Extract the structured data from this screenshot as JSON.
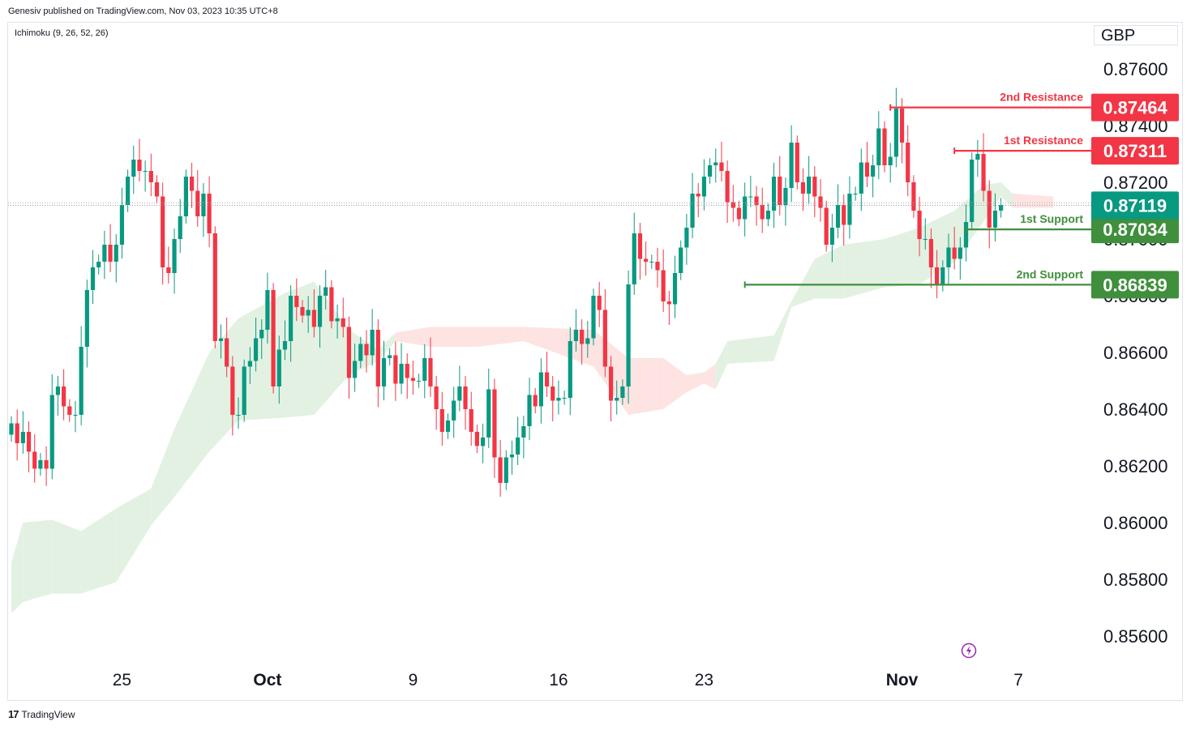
{
  "header": {
    "published": "Genesiv published on TradingView.com, Nov 03, 2023 10:35 UTC+8",
    "indicator": "Ichimoku (9, 26, 52, 26)",
    "currency": "GBP"
  },
  "footer": {
    "brand": "TradingView"
  },
  "colors": {
    "up": "#089981",
    "down": "#f23645",
    "cloud_bull": "#e3f1e3",
    "cloud_bear": "#fde4e2",
    "resistance": "#f23645",
    "support": "#3f8f3c",
    "last_price": "#089981"
  },
  "chart_data": {
    "type": "candlestick",
    "y_ticks": [
      "0.85600",
      "0.85800",
      "0.86000",
      "0.86200",
      "0.86400",
      "0.86600",
      "0.86800",
      "0.87000",
      "0.87200",
      "0.87400",
      "0.87600"
    ],
    "x_ticks": [
      {
        "label": "25",
        "index": 19
      },
      {
        "label": "Oct",
        "index": 44
      },
      {
        "label": "9",
        "index": 69
      },
      {
        "label": "16",
        "index": 94
      },
      {
        "label": "23",
        "index": 119
      },
      {
        "label": "Nov",
        "index": 153
      },
      {
        "label": "7",
        "index": 173
      }
    ],
    "levels": [
      {
        "label": "2nd Resistance",
        "value": "0.87464",
        "kind": "resistance",
        "from_index": 151
      },
      {
        "label": "1st Resistance",
        "value": "0.87311",
        "kind": "resistance",
        "from_index": 162
      },
      {
        "label": "1st Support",
        "value": "0.87034",
        "kind": "support",
        "from_index": 164
      },
      {
        "label": "2nd Support",
        "value": "0.86839",
        "kind": "support",
        "from_index": 126
      }
    ],
    "last_price": {
      "value": "0.87119"
    },
    "closes": [
      0.8635,
      0.8628,
      0.8632,
      0.8625,
      0.8619,
      0.8622,
      0.8619,
      0.8645,
      0.8648,
      0.8641,
      0.8638,
      0.8638,
      0.8662,
      0.8682,
      0.869,
      0.8692,
      0.8698,
      0.8692,
      0.8698,
      0.8712,
      0.8722,
      0.8728,
      0.8724,
      0.8724,
      0.872,
      0.8715,
      0.869,
      0.8688,
      0.87,
      0.8708,
      0.8722,
      0.8717,
      0.8708,
      0.8716,
      0.8702,
      0.8664,
      0.8665,
      0.8655,
      0.8638,
      0.8638,
      0.8655,
      0.8657,
      0.8665,
      0.8668,
      0.8682,
      0.8648,
      0.8661,
      0.8664,
      0.868,
      0.8676,
      0.8673,
      0.8675,
      0.8669,
      0.868,
      0.8683,
      0.8671,
      0.8672,
      0.8669,
      0.8651,
      0.8657,
      0.8663,
      0.8659,
      0.8668,
      0.8648,
      0.8658,
      0.8659,
      0.8649,
      0.8656,
      0.8651,
      0.865,
      0.865,
      0.8658,
      0.8648,
      0.864,
      0.8632,
      0.8636,
      0.8643,
      0.8648,
      0.864,
      0.8632,
      0.8627,
      0.863,
      0.8647,
      0.8623,
      0.8614,
      0.8623,
      0.8624,
      0.863,
      0.8634,
      0.8645,
      0.8641,
      0.8653,
      0.8648,
      0.8643,
      0.8644,
      0.8644,
      0.8664,
      0.8668,
      0.8663,
      0.8665,
      0.868,
      0.8675,
      0.8655,
      0.8643,
      0.8644,
      0.8648,
      0.8684,
      0.8702,
      0.8693,
      0.8692,
      0.8692,
      0.8689,
      0.8678,
      0.8677,
      0.8688,
      0.8697,
      0.8704,
      0.8716,
      0.8715,
      0.8722,
      0.8726,
      0.8727,
      0.8724,
      0.8713,
      0.8711,
      0.8707,
      0.8715,
      0.8715,
      0.8712,
      0.8707,
      0.871,
      0.8722,
      0.8712,
      0.8718,
      0.8734,
      0.872,
      0.8716,
      0.8722,
      0.8715,
      0.8711,
      0.8698,
      0.8704,
      0.8712,
      0.8705,
      0.8716,
      0.8716,
      0.8727,
      0.8722,
      0.8726,
      0.8739,
      0.8726,
      0.8729,
      0.8746,
      0.8734,
      0.872,
      0.871,
      0.87,
      0.87,
      0.869,
      0.8684,
      0.869,
      0.8697,
      0.8693,
      0.8697,
      0.8706,
      0.8728,
      0.873,
      0.8717,
      0.8704,
      0.871,
      0.8712
    ],
    "cloud": [
      {
        "i": 0,
        "lo": 0.8568,
        "hi": 0.8586,
        "bull": true
      },
      {
        "i": 2,
        "lo": 0.8572,
        "hi": 0.86,
        "bull": true
      },
      {
        "i": 7,
        "lo": 0.8575,
        "hi": 0.8601,
        "bull": true
      },
      {
        "i": 12,
        "lo": 0.8575,
        "hi": 0.8597,
        "bull": true
      },
      {
        "i": 18,
        "lo": 0.8579,
        "hi": 0.8605,
        "bull": true
      },
      {
        "i": 24,
        "lo": 0.8599,
        "hi": 0.8612,
        "bull": true
      },
      {
        "i": 28,
        "lo": 0.8609,
        "hi": 0.8633,
        "bull": true
      },
      {
        "i": 34,
        "lo": 0.8625,
        "hi": 0.866,
        "bull": true
      },
      {
        "i": 39,
        "lo": 0.8636,
        "hi": 0.8672,
        "bull": true
      },
      {
        "i": 47,
        "lo": 0.8637,
        "hi": 0.8681,
        "bull": true
      },
      {
        "i": 52,
        "lo": 0.8638,
        "hi": 0.8685,
        "bull": true
      },
      {
        "i": 58,
        "lo": 0.8652,
        "hi": 0.8668,
        "bull": true
      },
      {
        "i": 63,
        "lo": 0.8657,
        "hi": 0.8661,
        "bull": true
      },
      {
        "i": 66,
        "lo": 0.8664,
        "hi": 0.8667,
        "bull": false
      },
      {
        "i": 72,
        "lo": 0.8662,
        "hi": 0.8669,
        "bull": false
      },
      {
        "i": 80,
        "lo": 0.8662,
        "hi": 0.8669,
        "bull": false
      },
      {
        "i": 88,
        "lo": 0.8664,
        "hi": 0.8669,
        "bull": false
      },
      {
        "i": 100,
        "lo": 0.8655,
        "hi": 0.8668,
        "bull": false
      },
      {
        "i": 106,
        "lo": 0.8638,
        "hi": 0.8658,
        "bull": false
      },
      {
        "i": 112,
        "lo": 0.864,
        "hi": 0.8658,
        "bull": false
      },
      {
        "i": 116,
        "lo": 0.8646,
        "hi": 0.8652,
        "bull": false
      },
      {
        "i": 119,
        "lo": 0.8649,
        "hi": 0.8653,
        "bull": false
      },
      {
        "i": 121,
        "lo": 0.8647,
        "hi": 0.8656,
        "bull": true
      },
      {
        "i": 123,
        "lo": 0.8656,
        "hi": 0.8664,
        "bull": true
      },
      {
        "i": 131,
        "lo": 0.8657,
        "hi": 0.8666,
        "bull": true
      },
      {
        "i": 134,
        "lo": 0.8676,
        "hi": 0.8678,
        "bull": true
      },
      {
        "i": 138,
        "lo": 0.8679,
        "hi": 0.8693,
        "bull": true
      },
      {
        "i": 143,
        "lo": 0.8679,
        "hi": 0.8698,
        "bull": true
      },
      {
        "i": 150,
        "lo": 0.8683,
        "hi": 0.87,
        "bull": true
      },
      {
        "i": 156,
        "lo": 0.8684,
        "hi": 0.8704,
        "bull": true
      },
      {
        "i": 162,
        "lo": 0.8692,
        "hi": 0.871,
        "bull": true
      },
      {
        "i": 167,
        "lo": 0.8706,
        "hi": 0.8719,
        "bull": true
      },
      {
        "i": 170,
        "lo": 0.8715,
        "hi": 0.872,
        "bull": true
      },
      {
        "i": 172,
        "lo": 0.8711,
        "hi": 0.8716,
        "bull": false
      },
      {
        "i": 179,
        "lo": 0.8711,
        "hi": 0.8715,
        "bull": false
      }
    ]
  }
}
